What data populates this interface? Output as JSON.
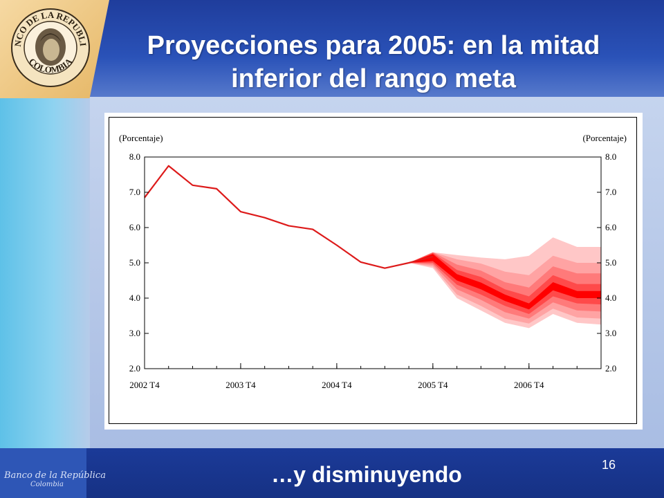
{
  "slide": {
    "title": "Proyecciones para 2005: en la mitad inferior del rango meta",
    "subtitle": "…y disminuyendo",
    "page_number": "16",
    "signature_line1": "Banco de la República",
    "signature_line2": "Colombia",
    "logo_top_text": "BANCO DE LA REPUBLICA",
    "logo_bottom_text": "COLOMBIA"
  },
  "chart_data": {
    "type": "line",
    "unit_left": "(Porcentaje)",
    "unit_right": "(Porcentaje)",
    "ylim": [
      2.0,
      8.0
    ],
    "yticks": [
      "8.0",
      "7.0",
      "6.0",
      "5.0",
      "4.0",
      "3.0",
      "2.0"
    ],
    "xtick_labels": [
      "2002 T4",
      "2003 T4",
      "2004 T4",
      "2005 T4",
      "2006 T4"
    ],
    "x": [
      "2002 T4",
      "2003 T1",
      "2003 T2",
      "2003 T3",
      "2003 T4",
      "2004 T1",
      "2004 T2",
      "2004 T3",
      "2004 T4",
      "2005 T1",
      "2005 T2",
      "2005 T3",
      "2005 T4",
      "2006 T1",
      "2006 T2",
      "2006 T3",
      "2006 T4",
      "2007 T1",
      "2007 T2",
      "2007 T3"
    ],
    "series": [
      {
        "values": [
          6.85,
          7.75,
          7.2,
          7.1,
          6.45,
          6.28,
          6.05,
          5.95,
          5.5,
          5.02,
          4.85,
          5.0,
          5.18,
          null,
          null,
          null,
          null,
          null,
          null,
          null
        ],
        "color": "#dd1a1a"
      }
    ],
    "fan": {
      "x_start": "2005 T3",
      "central": [
        5.0,
        5.18,
        4.6,
        4.35,
        4.0,
        3.75,
        4.35,
        4.1,
        4.1
      ],
      "bands": [
        {
          "low": [
            5.0,
            5.05,
            4.5,
            4.25,
            3.92,
            3.68,
            4.22,
            4.0,
            4.0
          ],
          "high": [
            5.0,
            5.25,
            4.68,
            4.44,
            4.1,
            3.85,
            4.45,
            4.2,
            4.2
          ],
          "color": "#ff0000"
        },
        {
          "low": [
            5.0,
            5.0,
            4.38,
            4.1,
            3.78,
            3.55,
            4.05,
            3.85,
            3.82
          ],
          "high": [
            5.0,
            5.28,
            4.8,
            4.6,
            4.25,
            4.05,
            4.65,
            4.4,
            4.4
          ],
          "color": "#ff4a4a"
        },
        {
          "low": [
            5.0,
            4.95,
            4.25,
            3.95,
            3.6,
            3.42,
            3.88,
            3.65,
            3.62
          ],
          "high": [
            5.0,
            5.3,
            4.95,
            4.78,
            4.45,
            4.3,
            4.9,
            4.7,
            4.7
          ],
          "color": "#ff7a7a"
        },
        {
          "low": [
            5.0,
            4.9,
            4.1,
            3.78,
            3.42,
            3.28,
            3.7,
            3.45,
            3.42
          ],
          "high": [
            5.0,
            5.3,
            5.1,
            4.98,
            4.75,
            4.65,
            5.2,
            5.0,
            5.0
          ],
          "color": "#ffa3a3"
        },
        {
          "low": [
            5.0,
            4.85,
            4.0,
            3.65,
            3.3,
            3.15,
            3.55,
            3.3,
            3.25
          ],
          "high": [
            5.0,
            5.3,
            5.22,
            5.15,
            5.1,
            5.2,
            5.72,
            5.45,
            5.45
          ],
          "color": "#ffc7c7"
        }
      ]
    },
    "grid": false,
    "legend": "none"
  }
}
